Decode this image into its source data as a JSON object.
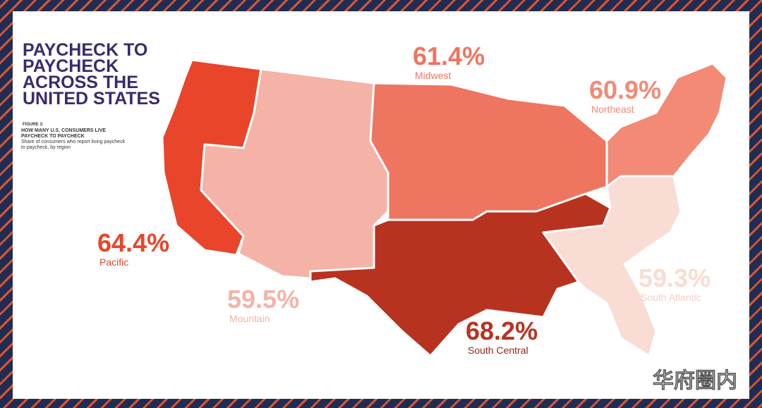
{
  "header": {
    "title": "PAYCHECK TO PAYCHECK ACROSS THE UNITED STATES",
    "figure_label": "FIGURE 3:",
    "figure_title": "HOW MANY U.S. CONSUMERS LIVE PAYCHECK TO PAYCHECK",
    "figure_subtitle": "Share of consumers who report living paycheck to paycheck, by region"
  },
  "regions": [
    {
      "name": "Pacific",
      "value": "64.4%",
      "color": "#e8452a"
    },
    {
      "name": "Mountain",
      "value": "59.5%",
      "color": "#f4b3a6"
    },
    {
      "name": "Midwest",
      "value": "61.4%",
      "color": "#ee7560"
    },
    {
      "name": "Northeast",
      "value": "60.9%",
      "color": "#f28a75"
    },
    {
      "name": "South Central",
      "value": "68.2%",
      "color": "#b83220"
    },
    {
      "name": "South Atlantic",
      "value": "59.3%",
      "color": "#f9dcd3"
    }
  ],
  "watermark": "华府圈内"
}
